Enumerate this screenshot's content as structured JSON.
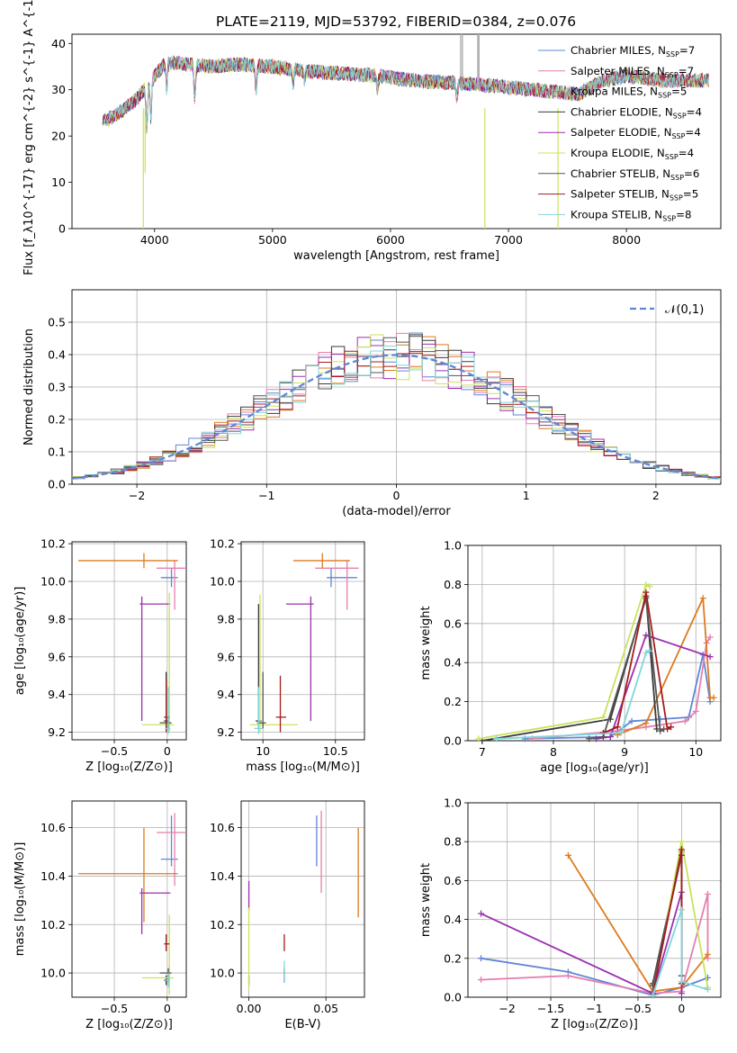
{
  "figure_title": "PLATE=2119, MJD=53792, FIBERID=0384, z=0.076",
  "series_styles": [
    {
      "name": "Chabrier MILES, N_{SSP}=7",
      "color": "#5f86d6"
    },
    {
      "name": "Salpeter MILES, N_{SSP}=7",
      "color": "#e57fae"
    },
    {
      "name": "Kroupa MILES, N_{SSP}=5",
      "color": "#de7a1e"
    },
    {
      "name": "Chabrier ELODIE, N_{SSP}=4",
      "color": "#3a3a3a"
    },
    {
      "name": "Salpeter ELODIE, N_{SSP}=4",
      "color": "#9b2fae"
    },
    {
      "name": "Kroupa ELODIE, N_{SSP}=4",
      "color": "#c9e35a"
    },
    {
      "name": "Chabrier STELIB, N_{SSP}=6",
      "color": "#555555"
    },
    {
      "name": "Salpeter STELIB, N_{SSP}=5",
      "color": "#a51c1c"
    },
    {
      "name": "Kroupa STELIB, N_{SSP}=8",
      "color": "#7fd6dc"
    }
  ],
  "chart_data": [
    {
      "id": "spectrum",
      "type": "line",
      "xlabel": "wavelength [Angstrom, rest frame]",
      "ylabel": "Flux [f_λ10^{-17} erg cm^{-2} s^{-1} A^{-1}]",
      "xlim": [
        3300,
        8800
      ],
      "ylim": [
        0,
        42
      ],
      "xticks": [
        4000,
        5000,
        6000,
        7000,
        8000
      ],
      "yticks": [
        0,
        10,
        20,
        30,
        40
      ],
      "grid": false,
      "legend_position": "top-right",
      "continuum": {
        "x": [
          3560,
          3700,
          3850,
          4000,
          4100,
          4300,
          4500,
          4700,
          5000,
          5300,
          5600,
          5900,
          6200,
          6500,
          6800,
          7000,
          7200,
          7400,
          7600,
          7800,
          8000,
          8300,
          8600
        ],
        "y": [
          23,
          25,
          28,
          33,
          36,
          35.5,
          35,
          35.5,
          35,
          34,
          33.5,
          33,
          32,
          31.5,
          31,
          30.5,
          30,
          29.5,
          29,
          32,
          33,
          32,
          32
        ]
      }
    },
    {
      "id": "residuals",
      "type": "histogram",
      "xlabel": "(data-model)/error",
      "ylabel": "Normed distribution",
      "xlim": [
        -2.5,
        2.5
      ],
      "ylim": [
        0,
        0.6
      ],
      "xticks": [
        -2,
        -1,
        0,
        1,
        2
      ],
      "yticks": [
        0.0,
        0.1,
        0.2,
        0.3,
        0.4,
        0.5
      ],
      "grid": true,
      "legend_position": "top-right",
      "gaussian_label": "𝒩(0,1)",
      "gaussian_color": "#5f86d6",
      "bin_width": 0.1
    },
    {
      "id": "age_vs_Z",
      "type": "errorbar",
      "xlabel": "Z [log₁₀(Z/Z⊙)]",
      "ylabel": "age  [log₁₀(age/yr)]",
      "xlim": [
        -0.9,
        0.18
      ],
      "ylim": [
        9.16,
        10.21
      ],
      "xticks": [
        -0.5,
        0.0
      ],
      "yticks": [
        9.2,
        9.4,
        9.6,
        9.8,
        10.0,
        10.2
      ],
      "grid": true,
      "points": [
        {
          "series": 0,
          "x": 0.04,
          "y": 10.02,
          "xerr": [
            0.1,
            0.06
          ],
          "yerr": [
            0.05,
            0.05
          ]
        },
        {
          "series": 1,
          "x": 0.07,
          "y": 10.07,
          "xerr": [
            0.17,
            0.1
          ],
          "yerr": [
            0.22,
            0.04
          ]
        },
        {
          "series": 2,
          "x": -0.22,
          "y": 10.11,
          "xerr": [
            0.62,
            0.32
          ],
          "yerr": [
            0.04,
            0.04
          ]
        },
        {
          "series": 3,
          "x": -0.01,
          "y": 9.26,
          "xerr": [
            0.02,
            0.02
          ],
          "yerr": [
            0.04,
            0.26
          ]
        },
        {
          "series": 4,
          "x": -0.24,
          "y": 9.88,
          "xerr": [
            0.02,
            0.27
          ],
          "yerr": [
            0.62,
            0.04
          ]
        },
        {
          "series": 5,
          "x": 0.02,
          "y": 9.24,
          "xerr": [
            0.26,
            0.04
          ],
          "yerr": [
            0.04,
            0.7
          ]
        },
        {
          "series": 6,
          "x": 0.01,
          "y": 9.25,
          "xerr": [
            0.08,
            0.03
          ],
          "yerr": [
            0.03,
            0.03
          ]
        },
        {
          "series": 7,
          "x": -0.01,
          "y": 9.28,
          "xerr": [
            0.02,
            0.03
          ],
          "yerr": [
            0.08,
            0.2
          ]
        },
        {
          "series": 8,
          "x": 0.01,
          "y": 9.22,
          "xerr": [
            0.03,
            0.02
          ],
          "yerr": [
            0.03,
            0.22
          ]
        }
      ]
    },
    {
      "id": "age_vs_mass",
      "type": "errorbar",
      "xlabel": "mass [log₁₀(M/M⊙)]",
      "ylabel": "",
      "xlim": [
        9.85,
        10.7
      ],
      "ylim": [
        9.16,
        10.21
      ],
      "xticks": [
        10.0,
        10.5
      ],
      "yticks": [
        9.2,
        9.4,
        9.6,
        9.8,
        10.0,
        10.2
      ],
      "grid": true,
      "points": [
        {
          "series": 0,
          "x": 10.47,
          "y": 10.02,
          "xerr": [
            0.03,
            0.18
          ],
          "yerr": [
            0.05,
            0.05
          ]
        },
        {
          "series": 1,
          "x": 10.58,
          "y": 10.07,
          "xerr": [
            0.22,
            0.08
          ],
          "yerr": [
            0.22,
            0.04
          ]
        },
        {
          "series": 2,
          "x": 10.41,
          "y": 10.11,
          "xerr": [
            0.2,
            0.19
          ],
          "yerr": [
            0.04,
            0.04
          ]
        },
        {
          "series": 3,
          "x": 9.97,
          "y": 9.26,
          "xerr": [
            0.02,
            0.02
          ],
          "yerr": [
            0.04,
            0.62
          ]
        },
        {
          "series": 4,
          "x": 10.33,
          "y": 9.88,
          "xerr": [
            0.17,
            0.02
          ],
          "yerr": [
            0.62,
            0.04
          ]
        },
        {
          "series": 5,
          "x": 9.98,
          "y": 9.24,
          "xerr": [
            0.07,
            0.26
          ],
          "yerr": [
            0.04,
            0.69
          ]
        },
        {
          "series": 6,
          "x": 10.0,
          "y": 9.25,
          "xerr": [
            0.04,
            0.02
          ],
          "yerr": [
            0.03,
            0.27
          ]
        },
        {
          "series": 7,
          "x": 10.12,
          "y": 9.28,
          "xerr": [
            0.03,
            0.04
          ],
          "yerr": [
            0.08,
            0.22
          ]
        },
        {
          "series": 8,
          "x": 9.97,
          "y": 9.22,
          "xerr": [
            0.03,
            0.03
          ],
          "yerr": [
            0.03,
            0.22
          ]
        }
      ]
    },
    {
      "id": "weight_vs_age",
      "type": "line",
      "xlabel": "age  [log₁₀(age/yr)]",
      "ylabel": "mass weight",
      "xlim": [
        6.8,
        10.35
      ],
      "ylim": [
        0,
        1
      ],
      "xticks": [
        7,
        8,
        9,
        10
      ],
      "yticks": [
        0.0,
        0.2,
        0.4,
        0.6,
        0.8,
        1.0
      ],
      "grid": true,
      "series": [
        {
          "series": 0,
          "x": [
            7.6,
            8.8,
            9.1,
            9.5,
            9.9,
            10.1,
            10.2
          ],
          "y": [
            0.01,
            0.02,
            0.1,
            0.11,
            0.12,
            0.44,
            0.2
          ]
        },
        {
          "series": 1,
          "x": [
            7.7,
            8.9,
            9.3,
            9.85,
            10.0,
            10.15,
            10.2
          ],
          "y": [
            0.01,
            0.05,
            0.07,
            0.1,
            0.15,
            0.5,
            0.53
          ]
        },
        {
          "series": 2,
          "x": [
            8.9,
            9.3,
            10.1,
            10.2,
            10.25
          ],
          "y": [
            0.03,
            0.09,
            0.73,
            0.22,
            0.22
          ]
        },
        {
          "series": 3,
          "x": [
            7.0,
            8.8,
            9.3,
            9.45
          ],
          "y": [
            0.0,
            0.11,
            0.74,
            0.06
          ]
        },
        {
          "series": 4,
          "x": [
            8.6,
            8.8,
            9.3,
            10.2
          ],
          "y": [
            0.01,
            0.02,
            0.54,
            0.43
          ]
        },
        {
          "series": 5,
          "x": [
            6.95,
            8.7,
            9.3,
            9.35
          ],
          "y": [
            0.01,
            0.12,
            0.8,
            0.79
          ]
        },
        {
          "series": 6,
          "x": [
            8.5,
            8.7,
            9.3,
            9.5,
            9.55
          ],
          "y": [
            0.01,
            0.02,
            0.73,
            0.05,
            0.06
          ]
        },
        {
          "series": 7,
          "x": [
            8.7,
            8.9,
            9.3,
            9.6,
            9.65
          ],
          "y": [
            0.04,
            0.07,
            0.76,
            0.06,
            0.07
          ]
        },
        {
          "series": 8,
          "x": [
            7.2,
            8.95,
            9.3,
            9.35
          ],
          "y": [
            0.01,
            0.04,
            0.45,
            0.46
          ]
        }
      ]
    },
    {
      "id": "mass_vs_Z",
      "type": "errorbar",
      "xlabel": "Z [log₁₀(Z/Z⊙)]",
      "ylabel": "mass [log₁₀(M/M⊙)]",
      "xlim": [
        -0.9,
        0.18
      ],
      "ylim": [
        9.9,
        10.71
      ],
      "xticks": [
        -0.5,
        0.0
      ],
      "yticks": [
        10.0,
        10.2,
        10.4,
        10.6
      ],
      "grid": true,
      "points": [
        {
          "series": 0,
          "x": 0.04,
          "y": 10.47,
          "xerr": [
            0.1,
            0.06
          ],
          "yerr": [
            0.03,
            0.18
          ]
        },
        {
          "series": 1,
          "x": 0.07,
          "y": 10.58,
          "xerr": [
            0.17,
            0.1
          ],
          "yerr": [
            0.22,
            0.08
          ]
        },
        {
          "series": 2,
          "x": -0.22,
          "y": 10.41,
          "xerr": [
            0.62,
            0.32
          ],
          "yerr": [
            0.2,
            0.19
          ]
        },
        {
          "series": 3,
          "x": -0.01,
          "y": 9.97,
          "xerr": [
            0.02,
            0.02
          ],
          "yerr": [
            0.02,
            0.02
          ]
        },
        {
          "series": 4,
          "x": -0.24,
          "y": 10.33,
          "xerr": [
            0.02,
            0.27
          ],
          "yerr": [
            0.17,
            0.02
          ]
        },
        {
          "series": 5,
          "x": 0.02,
          "y": 9.98,
          "xerr": [
            0.26,
            0.04
          ],
          "yerr": [
            0.07,
            0.26
          ]
        },
        {
          "series": 6,
          "x": 0.01,
          "y": 10.0,
          "xerr": [
            0.08,
            0.03
          ],
          "yerr": [
            0.04,
            0.02
          ]
        },
        {
          "series": 7,
          "x": -0.01,
          "y": 10.12,
          "xerr": [
            0.02,
            0.03
          ],
          "yerr": [
            0.03,
            0.04
          ]
        },
        {
          "series": 8,
          "x": 0.01,
          "y": 9.97,
          "xerr": [
            0.03,
            0.02
          ],
          "yerr": [
            0.03,
            0.03
          ]
        }
      ]
    },
    {
      "id": "mass_vs_EBV",
      "type": "errorbar",
      "xlabel": "E(B-V)",
      "ylabel": "",
      "xlim": [
        -0.005,
        0.075
      ],
      "ylim": [
        9.9,
        10.71
      ],
      "xticks": [
        0.0,
        0.05
      ],
      "xtick_labels": [
        "0.00",
        "0.05"
      ],
      "yticks": [
        10.0,
        10.2,
        10.4,
        10.6
      ],
      "grid": true,
      "points": [
        {
          "series": 0,
          "x": 0.044,
          "y": 10.47,
          "xerr": [
            0,
            0
          ],
          "yerr": [
            0.03,
            0.18
          ]
        },
        {
          "series": 1,
          "x": 0.047,
          "y": 10.58,
          "xerr": [
            0,
            0
          ],
          "yerr": [
            0.25,
            0.09
          ]
        },
        {
          "series": 2,
          "x": 0.071,
          "y": 10.41,
          "xerr": [
            0,
            0
          ],
          "yerr": [
            0.18,
            0.19
          ]
        },
        {
          "series": 3,
          "x": 0.0,
          "y": 9.97,
          "xerr": [
            0,
            0
          ],
          "yerr": [
            0.02,
            0.02
          ]
        },
        {
          "series": 4,
          "x": 0.0,
          "y": 10.33,
          "xerr": [
            0,
            0
          ],
          "yerr": [
            0.07,
            0.05
          ]
        },
        {
          "series": 5,
          "x": 0.0,
          "y": 10.0,
          "xerr": [
            0,
            0
          ],
          "yerr": [
            0.07,
            0.27
          ]
        },
        {
          "series": 6,
          "x": 0.023,
          "y": 10.0,
          "xerr": [
            0,
            0
          ],
          "yerr": [
            0.04,
            0.02
          ]
        },
        {
          "series": 7,
          "x": 0.023,
          "y": 10.12,
          "xerr": [
            0,
            0
          ],
          "yerr": [
            0.03,
            0.04
          ]
        },
        {
          "series": 8,
          "x": 0.023,
          "y": 9.99,
          "xerr": [
            0,
            0
          ],
          "yerr": [
            0.03,
            0.06
          ]
        }
      ]
    },
    {
      "id": "weight_vs_Z",
      "type": "line",
      "xlabel": "Z [log₁₀(Z/Z⊙)]",
      "ylabel": "mass weight",
      "xlim": [
        -2.45,
        0.45
      ],
      "ylim": [
        0,
        1
      ],
      "xticks": [
        -2.0,
        -1.5,
        -1.0,
        -0.5,
        0.0
      ],
      "yticks": [
        0.0,
        0.2,
        0.4,
        0.6,
        0.8,
        1.0
      ],
      "grid": true,
      "series": [
        {
          "series": 0,
          "x": [
            -2.3,
            -1.3,
            -0.33,
            0.0,
            0.3
          ],
          "y": [
            0.2,
            0.13,
            0.01,
            0.05,
            0.1
          ]
        },
        {
          "series": 1,
          "x": [
            -2.3,
            -1.3,
            -0.33,
            0.0,
            0.3,
            0.3
          ],
          "y": [
            0.09,
            0.11,
            0.02,
            0.03,
            0.53,
            0.2
          ]
        },
        {
          "series": 2,
          "x": [
            -1.3,
            -0.33,
            0.0,
            0.3
          ],
          "y": [
            0.73,
            0.03,
            0.05,
            0.22
          ]
        },
        {
          "series": 3,
          "x": [
            -0.33,
            0.0,
            0.0
          ],
          "y": [
            0.07,
            0.75,
            0.11
          ]
        },
        {
          "series": 4,
          "x": [
            -2.3,
            -0.33,
            0.0,
            0.0
          ],
          "y": [
            0.43,
            0.02,
            0.54,
            0.02
          ]
        },
        {
          "series": 5,
          "x": [
            -0.33,
            0.0,
            0.3
          ],
          "y": [
            0.01,
            0.8,
            0.05
          ]
        },
        {
          "series": 6,
          "x": [
            -0.33,
            0.0,
            0.0
          ],
          "y": [
            0.06,
            0.73,
            0.11
          ]
        },
        {
          "series": 7,
          "x": [
            -0.33,
            0.0,
            0.0
          ],
          "y": [
            0.01,
            0.76,
            0.07
          ]
        },
        {
          "series": 8,
          "x": [
            -0.33,
            0.0,
            0.0,
            0.3
          ],
          "y": [
            0.01,
            0.45,
            0.08,
            0.04
          ]
        }
      ]
    }
  ]
}
